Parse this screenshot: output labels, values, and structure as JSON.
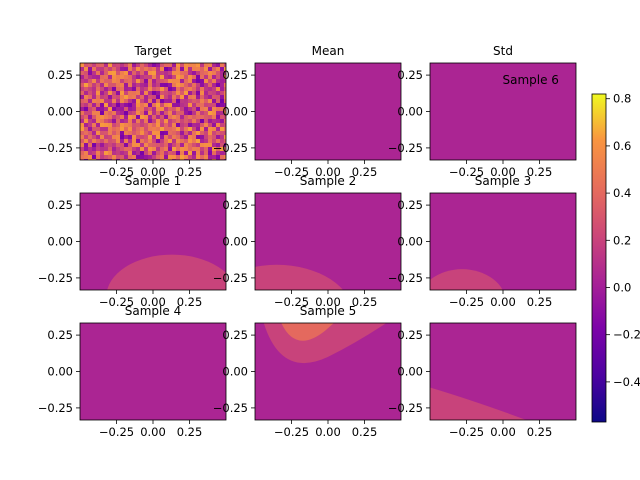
{
  "figure": {
    "colormap": "plasma",
    "colorbar": {
      "ticks": [
        {
          "value": 0.8,
          "label": "0.8"
        },
        {
          "value": 0.6,
          "label": "0.6"
        },
        {
          "value": 0.4,
          "label": "0.4"
        },
        {
          "value": 0.2,
          "label": "0.2"
        },
        {
          "value": 0.0,
          "label": "0.0"
        },
        {
          "value": -0.2,
          "label": "−0.2"
        },
        {
          "value": -0.4,
          "label": "−0.4"
        }
      ],
      "range": [
        -0.57,
        0.82
      ]
    }
  },
  "chart_data": [
    {
      "type": "heatmap",
      "title": "Target",
      "pattern": "noise",
      "base_value": 0.05,
      "xlim": [
        -0.5,
        0.5
      ],
      "ylim": [
        -0.333,
        0.333
      ],
      "xticks": [
        "−0.25",
        "0.00",
        "0.25"
      ],
      "yticks": [
        "0.25",
        "0.00",
        "−0.25"
      ]
    },
    {
      "type": "heatmap",
      "title": "Mean",
      "pattern": "uniform",
      "base_value": 0.04,
      "xlim": [
        -0.5,
        0.5
      ],
      "ylim": [
        -0.333,
        0.333
      ],
      "xticks": [
        "−0.25",
        "0.00",
        "0.25"
      ],
      "yticks": [
        "0.25",
        "0.00",
        "−0.25"
      ]
    },
    {
      "type": "heatmap",
      "title": "Std",
      "annotation": "Sample 6",
      "pattern": "uniform",
      "base_value": 0.04,
      "xlim": [
        -0.5,
        0.5
      ],
      "ylim": [
        -0.333,
        0.333
      ],
      "xticks": [
        "−0.25",
        "0.00",
        "0.25"
      ],
      "yticks": [
        "0.25",
        "0.00",
        "−0.25"
      ]
    },
    {
      "type": "heatmap",
      "title": "Sample 1",
      "pattern": "blob",
      "base_value": 0.04,
      "blob_value": 0.2,
      "blob": {
        "cx": 0.13,
        "cy": -0.38,
        "rx": 0.45,
        "ry": 0.29
      },
      "xlim": [
        -0.5,
        0.5
      ],
      "ylim": [
        -0.333,
        0.333
      ],
      "xticks": [
        "−0.25",
        "0.00",
        "0.25"
      ],
      "yticks": [
        "0.25",
        "0.00",
        "−0.25"
      ]
    },
    {
      "type": "heatmap",
      "title": "Sample 2",
      "pattern": "blob",
      "base_value": 0.04,
      "blob_value": 0.2,
      "blob": {
        "cx": -0.35,
        "cy": -0.5,
        "rx": 0.52,
        "ry": 0.34
      },
      "xlim": [
        -0.5,
        0.5
      ],
      "ylim": [
        -0.333,
        0.333
      ],
      "xticks": [
        "−0.25",
        "0.00",
        "0.25"
      ],
      "yticks": [
        "0.25",
        "0.00",
        "−0.25"
      ]
    },
    {
      "type": "heatmap",
      "title": "Sample 3",
      "pattern": "blob",
      "base_value": 0.04,
      "blob_value": 0.2,
      "blob": {
        "cx": -0.28,
        "cy": -0.42,
        "rx": 0.3,
        "ry": 0.23
      },
      "xlim": [
        -0.5,
        0.5
      ],
      "ylim": [
        -0.333,
        0.333
      ],
      "xticks": [
        "−0.25",
        "0.00",
        "0.25"
      ],
      "yticks": [
        "0.25",
        "0.00",
        "−0.25"
      ]
    },
    {
      "type": "heatmap",
      "title": "Sample 4",
      "pattern": "uniform",
      "base_value": 0.04,
      "xlim": [
        -0.5,
        0.5
      ],
      "ylim": [
        -0.333,
        0.333
      ],
      "xticks": [
        "−0.25",
        "0.00",
        "0.25"
      ],
      "yticks": [
        "0.25",
        "0.00",
        "−0.25"
      ]
    },
    {
      "type": "heatmap",
      "title": "Sample 5",
      "pattern": "wedge",
      "base_value": 0.04,
      "outer_value": 0.2,
      "inner_value": 0.4,
      "xlim": [
        -0.5,
        0.5
      ],
      "ylim": [
        -0.333,
        0.333
      ],
      "xticks": [
        "−0.25",
        "0.00",
        "0.25"
      ],
      "yticks": [
        "0.25",
        "0.00",
        "−0.25"
      ]
    },
    {
      "type": "heatmap",
      "title": "",
      "pattern": "band",
      "base_value": 0.04,
      "band_value": 0.2,
      "xlim": [
        -0.5,
        0.5
      ],
      "ylim": [
        -0.333,
        0.333
      ],
      "xticks": [
        "−0.25",
        "0.00",
        "0.25"
      ],
      "yticks": [
        "0.25",
        "0.00",
        "−0.25"
      ]
    }
  ]
}
